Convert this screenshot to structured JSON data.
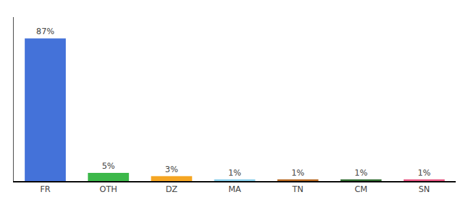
{
  "chart_data": {
    "type": "bar",
    "categories": [
      "FR",
      "OTH",
      "DZ",
      "MA",
      "TN",
      "CM",
      "SN"
    ],
    "values": [
      87,
      5,
      3,
      1,
      1,
      1,
      1
    ],
    "value_labels": [
      "87%",
      "5%",
      "3%",
      "1%",
      "1%",
      "1%",
      "1%"
    ],
    "colors": [
      "#4472d9",
      "#3cb84a",
      "#f5a623",
      "#87ceeb",
      "#b5651d",
      "#2e6b2e",
      "#e75480"
    ],
    "ylim": [
      0,
      100
    ],
    "data_labels": true,
    "tick_labels": "x",
    "grid": false
  }
}
